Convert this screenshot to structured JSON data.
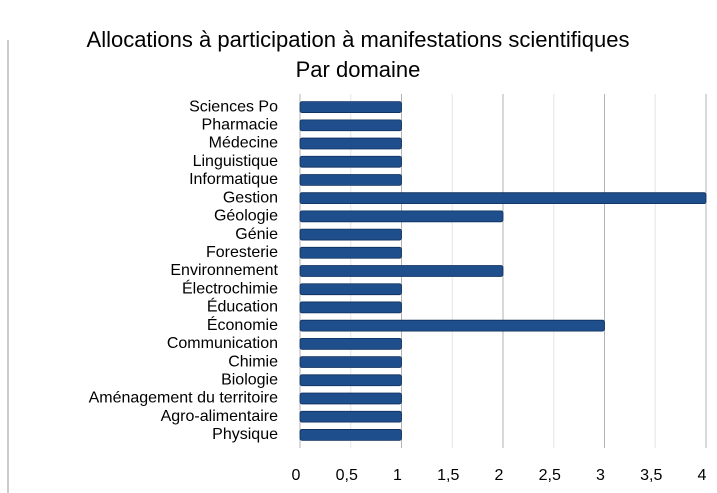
{
  "chart_data": {
    "type": "bar",
    "orientation": "horizontal",
    "title": "Allocations à participation à manifestations scientifiques",
    "subtitle": "Par domaine",
    "categories": [
      "Sciences Po",
      "Pharmacie",
      "Médecine",
      "Linguistique",
      "Informatique",
      "Gestion",
      "Géologie",
      "Génie",
      "Foresterie",
      "Environnement",
      "Électrochimie",
      "Éducation",
      "Économie",
      "Communication",
      "Chimie",
      "Biologie",
      "Aménagement du territoire",
      "Agro-alimentaire",
      "Physique"
    ],
    "values": [
      1,
      1,
      1,
      1,
      1,
      4,
      2,
      1,
      1,
      2,
      1,
      1,
      3,
      1,
      1,
      1,
      1,
      1,
      1
    ],
    "color": "#1f4e8c",
    "xlim": [
      0,
      4
    ],
    "xticks": [
      0,
      {
        "value": 0.5,
        "label": "0,5"
      },
      1,
      {
        "value": 1.5,
        "label": "1,5"
      },
      2,
      {
        "value": 2.5,
        "label": "2,5"
      },
      3,
      {
        "value": 3.5,
        "label": "3,5"
      },
      4
    ],
    "grid": true
  }
}
